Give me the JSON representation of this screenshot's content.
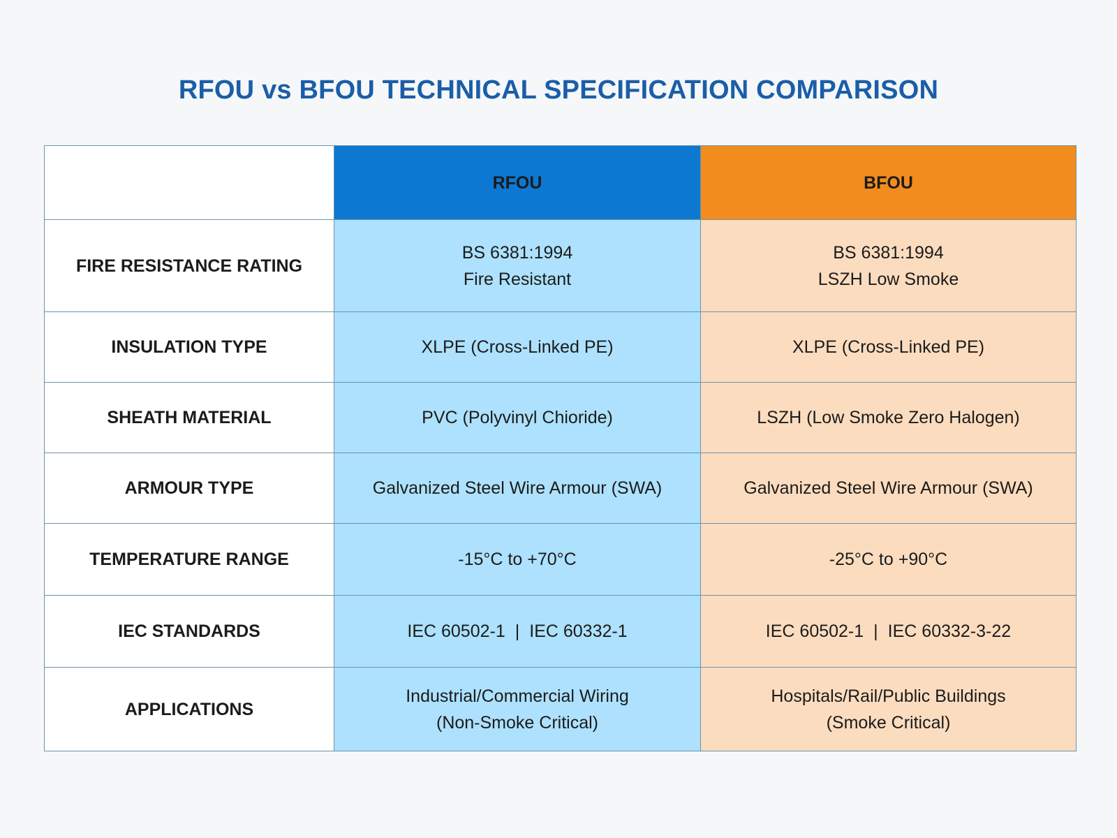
{
  "title": "RFOU vs BFOU TECHNICAL SPECIFICATION COMPARISON",
  "colors": {
    "title": "#1a5ea8",
    "rfou_header": "#0d78d2",
    "bfou_header": "#f28c1e",
    "rfou_cell": "#ade1fd",
    "bfou_cell": "#fcdcbf"
  },
  "table": {
    "headers": {
      "rfou": "RFOU",
      "bfou": "BFOU"
    },
    "rows": [
      {
        "label": "FIRE RESISTANCE RATING",
        "rfou": [
          "BS 6381:1994",
          "Fire Resistant"
        ],
        "bfou": [
          "BS 6381:1994",
          "LSZH Low Smoke"
        ]
      },
      {
        "label": "INSULATION TYPE",
        "rfou": [
          "XLPE (Cross-Linked PE)"
        ],
        "bfou": [
          "XLPE (Cross-Linked PE)"
        ]
      },
      {
        "label": "SHEATH MATERIAL",
        "rfou": [
          "PVC (Polyvinyl Chioride)"
        ],
        "bfou": [
          "LSZH (Low Smoke Zero Halogen)"
        ]
      },
      {
        "label": "ARMOUR TYPE",
        "rfou": [
          "Galvanized Steel Wire Armour (SWA)"
        ],
        "bfou": [
          "Galvanized Steel Wire Armour (SWA)"
        ]
      },
      {
        "label": "TEMPERATURE RANGE",
        "rfou": [
          "-15°C to +70°C"
        ],
        "bfou": [
          "-25°C to +90°C"
        ]
      },
      {
        "label": "IEC STANDARDS",
        "rfou": [
          "IEC 60502-1",
          "|",
          "IEC 60332-1"
        ],
        "bfou": [
          "IEC 60502-1",
          "|",
          "IEC 60332-3-22"
        ]
      },
      {
        "label": "APPLICATIONS",
        "rfou": [
          "Industrial/Commercial Wiring",
          "(Non-Smoke Critical)"
        ],
        "bfou": [
          "Hospitals/Rail/Public Buildings",
          "(Smoke Critical)"
        ]
      }
    ]
  }
}
